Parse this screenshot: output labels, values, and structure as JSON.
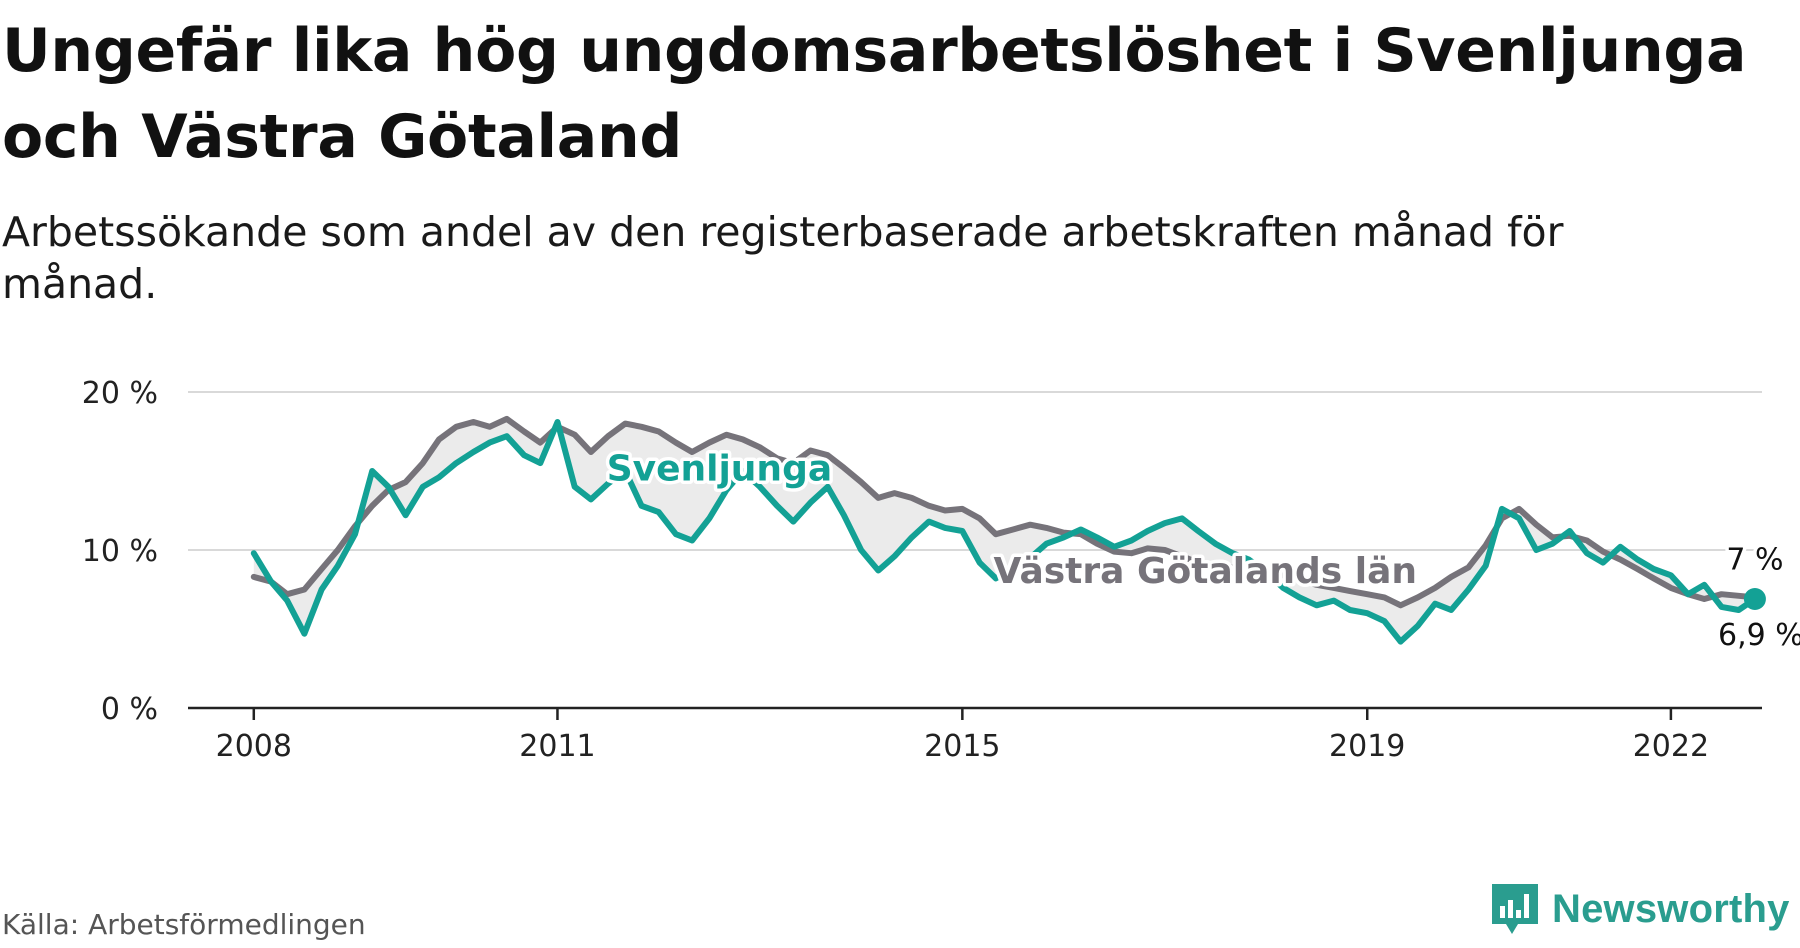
{
  "title": "Ungefär lika hög ungdomsarbetslöshet i Svenljunga och Västra Götaland",
  "subtitle": "Arbetssökande som andel av den registerbaserade arbetskraften månad för månad.",
  "source": "Källa: Arbetsförmedlingen",
  "brand": "Newsworthy",
  "colors": {
    "svenljunga": "#13a195",
    "vastra": "#76737a",
    "grid": "#d9d9d9",
    "axis": "#222222",
    "fill": "#ebebeb"
  },
  "chart_data": {
    "type": "line",
    "title": "Ungefär lika hög ungdomsarbetslöshet i Svenljunga och Västra Götaland",
    "xlabel": "",
    "ylabel": "",
    "ylim": [
      0,
      20
    ],
    "xlim": [
      2007.35,
      2022.9
    ],
    "yticks": [
      {
        "value": 0,
        "label": "0 %"
      },
      {
        "value": 10,
        "label": "10 %"
      },
      {
        "value": 20,
        "label": "20 %"
      }
    ],
    "xticks": [
      {
        "value": 2008,
        "label": "2008"
      },
      {
        "value": 2011,
        "label": "2011"
      },
      {
        "value": 2015,
        "label": "2015"
      },
      {
        "value": 2019,
        "label": "2019"
      },
      {
        "value": 2022,
        "label": "2022"
      }
    ],
    "series": [
      {
        "name": "Västra Götalands län",
        "label": "Västra Götalands län",
        "end_label": "7 %",
        "points": [
          [
            2008.0,
            8.3
          ],
          [
            2008.17,
            8.0
          ],
          [
            2008.33,
            7.2
          ],
          [
            2008.5,
            7.5
          ],
          [
            2008.67,
            8.8
          ],
          [
            2008.83,
            10.0
          ],
          [
            2009.0,
            11.5
          ],
          [
            2009.17,
            12.8
          ],
          [
            2009.33,
            13.8
          ],
          [
            2009.5,
            14.3
          ],
          [
            2009.67,
            15.5
          ],
          [
            2009.83,
            17.0
          ],
          [
            2010.0,
            17.8
          ],
          [
            2010.17,
            18.1
          ],
          [
            2010.33,
            17.8
          ],
          [
            2010.5,
            18.3
          ],
          [
            2010.67,
            17.5
          ],
          [
            2010.83,
            16.8
          ],
          [
            2011.0,
            17.8
          ],
          [
            2011.17,
            17.3
          ],
          [
            2011.33,
            16.2
          ],
          [
            2011.5,
            17.2
          ],
          [
            2011.67,
            18.0
          ],
          [
            2011.83,
            17.8
          ],
          [
            2012.0,
            17.5
          ],
          [
            2012.17,
            16.8
          ],
          [
            2012.33,
            16.2
          ],
          [
            2012.5,
            16.8
          ],
          [
            2012.67,
            17.3
          ],
          [
            2012.83,
            17.0
          ],
          [
            2013.0,
            16.5
          ],
          [
            2013.17,
            15.8
          ],
          [
            2013.33,
            15.5
          ],
          [
            2013.5,
            16.3
          ],
          [
            2013.67,
            16.0
          ],
          [
            2013.83,
            15.2
          ],
          [
            2014.0,
            14.3
          ],
          [
            2014.17,
            13.3
          ],
          [
            2014.33,
            13.6
          ],
          [
            2014.5,
            13.3
          ],
          [
            2014.67,
            12.8
          ],
          [
            2014.83,
            12.5
          ],
          [
            2015.0,
            12.6
          ],
          [
            2015.17,
            12.0
          ],
          [
            2015.33,
            11.0
          ],
          [
            2015.5,
            11.3
          ],
          [
            2015.67,
            11.6
          ],
          [
            2015.83,
            11.4
          ],
          [
            2016.0,
            11.1
          ],
          [
            2016.17,
            11.0
          ],
          [
            2016.33,
            10.4
          ],
          [
            2016.5,
            9.9
          ],
          [
            2016.67,
            9.8
          ],
          [
            2016.83,
            10.1
          ],
          [
            2017.0,
            10.0
          ],
          [
            2017.17,
            9.6
          ],
          [
            2017.33,
            9.2
          ],
          [
            2017.5,
            9.0
          ],
          [
            2017.67,
            8.9
          ],
          [
            2017.83,
            8.7
          ],
          [
            2018.0,
            8.5
          ],
          [
            2018.17,
            8.4
          ],
          [
            2018.33,
            8.1
          ],
          [
            2018.5,
            7.8
          ],
          [
            2018.67,
            7.6
          ],
          [
            2018.83,
            7.4
          ],
          [
            2019.0,
            7.2
          ],
          [
            2019.17,
            7.0
          ],
          [
            2019.33,
            6.5
          ],
          [
            2019.5,
            7.0
          ],
          [
            2019.67,
            7.6
          ],
          [
            2019.83,
            8.3
          ],
          [
            2020.0,
            8.9
          ],
          [
            2020.17,
            10.3
          ],
          [
            2020.33,
            12.0
          ],
          [
            2020.5,
            12.6
          ],
          [
            2020.67,
            11.6
          ],
          [
            2020.83,
            10.8
          ],
          [
            2021.0,
            10.9
          ],
          [
            2021.17,
            10.6
          ],
          [
            2021.33,
            9.9
          ],
          [
            2021.5,
            9.4
          ],
          [
            2021.67,
            8.8
          ],
          [
            2021.83,
            8.2
          ],
          [
            2022.0,
            7.6
          ],
          [
            2022.17,
            7.2
          ],
          [
            2022.33,
            6.9
          ],
          [
            2022.5,
            7.2
          ],
          [
            2022.67,
            7.1
          ],
          [
            2022.83,
            7.0
          ]
        ]
      },
      {
        "name": "Svenljunga",
        "label": "Svenljunga",
        "end_label": "6,9 %",
        "points": [
          [
            2008.0,
            9.8
          ],
          [
            2008.17,
            8.0
          ],
          [
            2008.33,
            6.8
          ],
          [
            2008.5,
            4.7
          ],
          [
            2008.67,
            7.5
          ],
          [
            2008.83,
            9.0
          ],
          [
            2009.0,
            11.0
          ],
          [
            2009.17,
            15.0
          ],
          [
            2009.33,
            14.0
          ],
          [
            2009.5,
            12.2
          ],
          [
            2009.67,
            14.0
          ],
          [
            2009.83,
            14.6
          ],
          [
            2010.0,
            15.5
          ],
          [
            2010.17,
            16.2
          ],
          [
            2010.33,
            16.8
          ],
          [
            2010.5,
            17.2
          ],
          [
            2010.67,
            16.0
          ],
          [
            2010.83,
            15.5
          ],
          [
            2011.0,
            18.1
          ],
          [
            2011.17,
            14.0
          ],
          [
            2011.33,
            13.2
          ],
          [
            2011.5,
            14.2
          ],
          [
            2011.67,
            15.0
          ],
          [
            2011.83,
            12.8
          ],
          [
            2012.0,
            12.4
          ],
          [
            2012.17,
            11.0
          ],
          [
            2012.33,
            10.6
          ],
          [
            2012.5,
            12.0
          ],
          [
            2012.67,
            13.8
          ],
          [
            2012.83,
            15.0
          ],
          [
            2013.0,
            14.0
          ],
          [
            2013.17,
            12.8
          ],
          [
            2013.33,
            11.8
          ],
          [
            2013.5,
            13.0
          ],
          [
            2013.67,
            14.0
          ],
          [
            2013.83,
            12.2
          ],
          [
            2014.0,
            10.0
          ],
          [
            2014.17,
            8.7
          ],
          [
            2014.33,
            9.6
          ],
          [
            2014.5,
            10.8
          ],
          [
            2014.67,
            11.8
          ],
          [
            2014.83,
            11.4
          ],
          [
            2015.0,
            11.2
          ],
          [
            2015.17,
            9.2
          ],
          [
            2015.33,
            8.2
          ],
          [
            2015.5,
            8.8
          ],
          [
            2015.67,
            9.5
          ],
          [
            2015.83,
            10.4
          ],
          [
            2016.0,
            10.8
          ],
          [
            2016.17,
            11.3
          ],
          [
            2016.33,
            10.8
          ],
          [
            2016.5,
            10.2
          ],
          [
            2016.67,
            10.6
          ],
          [
            2016.83,
            11.2
          ],
          [
            2017.0,
            11.7
          ],
          [
            2017.17,
            12.0
          ],
          [
            2017.33,
            11.2
          ],
          [
            2017.5,
            10.4
          ],
          [
            2017.67,
            9.8
          ],
          [
            2017.83,
            9.4
          ],
          [
            2018.0,
            8.6
          ],
          [
            2018.17,
            7.6
          ],
          [
            2018.33,
            7.0
          ],
          [
            2018.5,
            6.5
          ],
          [
            2018.67,
            6.8
          ],
          [
            2018.83,
            6.2
          ],
          [
            2019.0,
            6.0
          ],
          [
            2019.17,
            5.5
          ],
          [
            2019.33,
            4.2
          ],
          [
            2019.5,
            5.2
          ],
          [
            2019.67,
            6.6
          ],
          [
            2019.83,
            6.2
          ],
          [
            2020.0,
            7.5
          ],
          [
            2020.17,
            9.0
          ],
          [
            2020.33,
            12.6
          ],
          [
            2020.5,
            12.0
          ],
          [
            2020.67,
            10.0
          ],
          [
            2020.83,
            10.4
          ],
          [
            2021.0,
            11.2
          ],
          [
            2021.17,
            9.8
          ],
          [
            2021.33,
            9.2
          ],
          [
            2021.5,
            10.2
          ],
          [
            2021.67,
            9.4
          ],
          [
            2021.83,
            8.8
          ],
          [
            2022.0,
            8.4
          ],
          [
            2022.17,
            7.2
          ],
          [
            2022.33,
            7.8
          ],
          [
            2022.5,
            6.4
          ],
          [
            2022.67,
            6.2
          ],
          [
            2022.83,
            6.9
          ]
        ]
      }
    ]
  }
}
